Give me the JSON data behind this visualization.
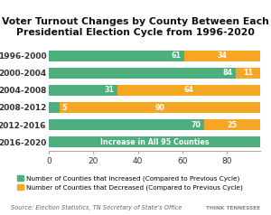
{
  "title": "Voter Turnout Changes by County Between Each\nPresidential Election Cycle from 1996-2020",
  "categories": [
    "1996-2000",
    "2000-2004",
    "2004-2008",
    "2008-2012",
    "2012-2016",
    "2016-2020"
  ],
  "increased": [
    61,
    84,
    31,
    5,
    70,
    95
  ],
  "decreased": [
    34,
    11,
    64,
    90,
    25,
    0
  ],
  "green_color": "#4CAF7D",
  "orange_color": "#F5A623",
  "xlim": [
    0,
    95
  ],
  "xticks": [
    0,
    20,
    40,
    60,
    80
  ],
  "source": "Source: Election Statistics, TN Secretary of State's Office",
  "legend_increased": "Number of Counties that Increased (Compared to Previous Cycle)",
  "legend_decreased": "Number of Counties that Decreased (Compared to Previous Cycle)",
  "special_label": "Increase in All 95 Counties",
  "background_color": "#ffffff",
  "title_fontsize": 7.8,
  "tick_fontsize": 6.5,
  "bar_label_fontsize": 5.8,
  "legend_fontsize": 5.2,
  "source_fontsize": 4.8
}
